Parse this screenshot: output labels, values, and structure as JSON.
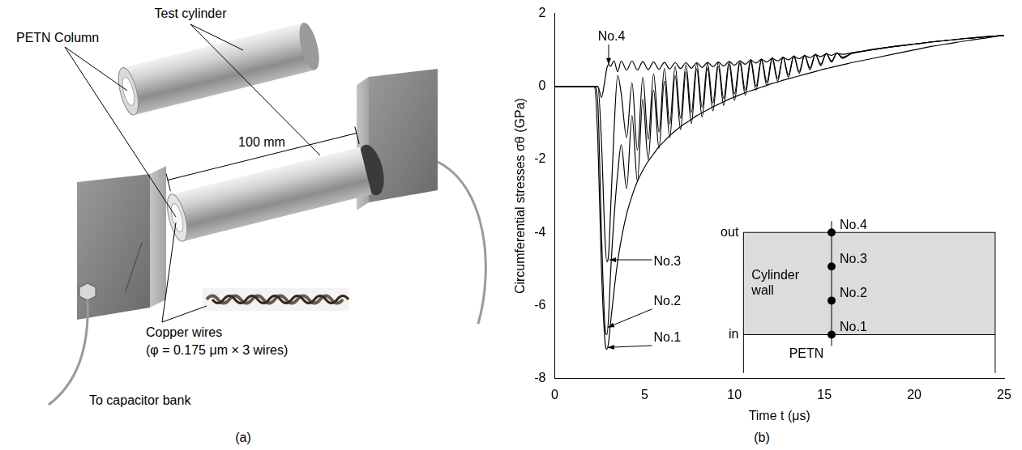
{
  "panel_a": {
    "label": "(a)",
    "texts": {
      "test_cylinder": "Test cylinder",
      "petn_column": "PETN Column",
      "length": "100 mm",
      "wires": "Copper wires",
      "wire_spec": "(φ = 0.175 μm × 3 wires)",
      "capacitor": "To capacitor bank"
    }
  },
  "panel_b": {
    "label": "(b)"
  },
  "chart_data": {
    "type": "line",
    "x_label": "Time t (μs)",
    "y_label": "Circumferential stresses σθ (GPa)",
    "x": [
      0,
      2.0,
      2.2,
      2.4,
      2.6,
      2.8,
      2.9,
      3.0,
      3.1,
      3.3,
      3.5,
      3.7,
      4.0,
      4.3,
      4.6,
      4.9,
      5.2,
      5.5,
      5.8,
      6.1,
      6.4,
      6.7,
      7.0,
      7.3,
      7.6,
      7.9,
      8.2,
      8.5,
      8.8,
      9.1,
      9.4,
      9.7,
      10.0,
      10.3,
      10.6,
      10.9,
      11.2,
      11.5,
      11.8,
      12.1,
      12.4,
      12.7,
      13.0,
      13.3,
      13.6,
      13.9,
      14.2,
      14.5,
      14.8,
      15.1,
      15.4,
      15.7,
      16.0,
      16.5,
      17,
      18,
      19,
      20,
      21,
      22,
      23,
      24,
      25
    ],
    "series": [
      {
        "name": "No.1",
        "color": "#000000",
        "values": [
          0,
          0,
          0,
          -1.5,
          -5.0,
          -7.0,
          -7.2,
          -7.0,
          -6.5,
          -5.6,
          -4.8,
          -4.2,
          -3.5,
          -3.0,
          -2.6,
          -2.3,
          -2.05,
          -1.85,
          -1.65,
          -1.5,
          -1.35,
          -1.22,
          -1.1,
          -1.0,
          -0.9,
          -0.8,
          -0.72,
          -0.64,
          -0.56,
          -0.49,
          -0.42,
          -0.35,
          -0.29,
          -0.23,
          -0.17,
          -0.12,
          -0.07,
          -0.02,
          0.03,
          0.08,
          0.12,
          0.17,
          0.21,
          0.25,
          0.29,
          0.33,
          0.37,
          0.41,
          0.45,
          0.49,
          0.52,
          0.56,
          0.59,
          0.65,
          0.7,
          0.8,
          0.9,
          1.0,
          1.1,
          1.18,
          1.26,
          1.33,
          1.4
        ]
      },
      {
        "name": "No.2",
        "color": "#000000",
        "values": [
          0,
          0,
          0,
          -0.5,
          -4.0,
          -6.6,
          -6.8,
          -6.3,
          -5.2,
          -3.6,
          -2.4,
          -1.6,
          -2.8,
          -0.8,
          -2.6,
          -0.35,
          -2.0,
          -0.1,
          -1.7,
          0.15,
          -1.4,
          0.3,
          -1.18,
          0.4,
          -1.02,
          0.48,
          -0.84,
          0.51,
          -0.67,
          0.55,
          -0.52,
          0.6,
          -0.38,
          0.64,
          -0.24,
          0.68,
          -0.1,
          0.72,
          0.02,
          0.76,
          0.14,
          0.8,
          0.25,
          0.83,
          0.36,
          0.85,
          0.46,
          0.88,
          0.57,
          0.9,
          0.67,
          0.92,
          0.77,
          0.9,
          0.95,
          1.03,
          1.1,
          1.16,
          1.22,
          1.27,
          1.32,
          1.36,
          1.4
        ]
      },
      {
        "name": "No.3",
        "color": "#000000",
        "values": [
          0,
          0,
          0,
          0,
          -1.5,
          -4.2,
          -4.8,
          -4.6,
          -3.5,
          -1.2,
          0.3,
          -0.2,
          -1.4,
          0.1,
          -1.75,
          0.25,
          -1.45,
          0.35,
          -1.25,
          0.5,
          -1.03,
          0.55,
          -0.87,
          0.6,
          -0.72,
          0.63,
          -0.57,
          0.64,
          -0.45,
          0.66,
          -0.33,
          0.68,
          -0.2,
          0.71,
          -0.1,
          0.74,
          0.01,
          0.76,
          0.12,
          0.79,
          0.22,
          0.81,
          0.32,
          0.84,
          0.41,
          0.86,
          0.51,
          0.88,
          0.61,
          0.9,
          0.7,
          0.91,
          0.8,
          0.9,
          0.95,
          1.03,
          1.1,
          1.16,
          1.22,
          1.27,
          1.32,
          1.36,
          1.4
        ]
      },
      {
        "name": "No.4",
        "color": "#000000",
        "values": [
          0,
          0,
          0,
          0,
          -0.3,
          0.2,
          0.5,
          0.6,
          0.55,
          0.7,
          0.4,
          0.7,
          0.45,
          0.7,
          0.45,
          0.68,
          0.46,
          0.67,
          0.47,
          0.66,
          0.48,
          0.65,
          0.49,
          0.65,
          0.5,
          0.65,
          0.52,
          0.66,
          0.54,
          0.67,
          0.56,
          0.68,
          0.58,
          0.7,
          0.61,
          0.72,
          0.64,
          0.74,
          0.67,
          0.77,
          0.7,
          0.79,
          0.73,
          0.82,
          0.76,
          0.84,
          0.79,
          0.87,
          0.82,
          0.89,
          0.85,
          0.91,
          0.88,
          0.92,
          0.96,
          1.04,
          1.1,
          1.16,
          1.22,
          1.27,
          1.32,
          1.36,
          1.4
        ]
      }
    ],
    "xlim": [
      0,
      25
    ],
    "xticks": [
      0,
      5,
      10,
      15,
      20,
      25
    ],
    "ylim": [
      -8,
      2
    ],
    "yticks": [
      -8,
      -6,
      -4,
      -2,
      0,
      2
    ],
    "grid": false,
    "annotations": [
      {
        "text": "No.4",
        "x": 2.4,
        "y": 1.35,
        "arrow_to": [
          3.0,
          0.6
        ]
      },
      {
        "text": "No.3",
        "x": 5.5,
        "y": -4.8,
        "arrow_to": [
          3.05,
          -4.75
        ]
      },
      {
        "text": "No.2",
        "x": 5.5,
        "y": -5.9,
        "arrow_to": [
          2.95,
          -6.6
        ]
      },
      {
        "text": "No.1",
        "x": 5.5,
        "y": -6.9,
        "arrow_to": [
          2.95,
          -7.15
        ]
      }
    ],
    "inset": {
      "top": "out",
      "bottom": "in",
      "wall": "Cylinder wall",
      "below": "PETN",
      "points": [
        "No.4",
        "No.3",
        "No.2",
        "No.1"
      ]
    }
  }
}
